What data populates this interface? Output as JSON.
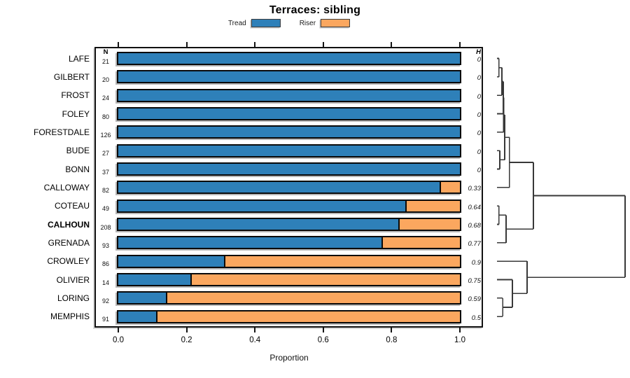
{
  "chart_data": {
    "type": "bar",
    "stacked": true,
    "orientation": "horizontal",
    "title": "Terraces: sibling",
    "xlabel": "Proportion",
    "xlim": [
      0,
      1
    ],
    "xtick_labels": [
      "0.0",
      "0.2",
      "0.4",
      "0.6",
      "0.8",
      "1.0"
    ],
    "grid": false,
    "legend_position": "top",
    "legend": {
      "entries": [
        {
          "label": "Tread",
          "color": "#2E80B9"
        },
        {
          "label": "Riser",
          "color": "#FBA75F"
        }
      ]
    },
    "n_column_header": "N",
    "h_column_header": "H",
    "rows": [
      {
        "label": "LAFE",
        "n": 21,
        "tread": 1.0,
        "riser": 0.0,
        "h": "0",
        "bold": false
      },
      {
        "label": "GILBERT",
        "n": 20,
        "tread": 1.0,
        "riser": 0.0,
        "h": "0",
        "bold": false
      },
      {
        "label": "FROST",
        "n": 24,
        "tread": 1.0,
        "riser": 0.0,
        "h": "0",
        "bold": false
      },
      {
        "label": "FOLEY",
        "n": 80,
        "tread": 1.0,
        "riser": 0.0,
        "h": "0",
        "bold": false
      },
      {
        "label": "FORESTDALE",
        "n": 126,
        "tread": 1.0,
        "riser": 0.0,
        "h": "0",
        "bold": false
      },
      {
        "label": "BUDE",
        "n": 27,
        "tread": 1.0,
        "riser": 0.0,
        "h": "0",
        "bold": false
      },
      {
        "label": "BONN",
        "n": 37,
        "tread": 1.0,
        "riser": 0.0,
        "h": "0",
        "bold": false
      },
      {
        "label": "CALLOWAY",
        "n": 82,
        "tread": 0.94,
        "riser": 0.06,
        "h": "0.33",
        "bold": false
      },
      {
        "label": "COTEAU",
        "n": 49,
        "tread": 0.84,
        "riser": 0.16,
        "h": "0.64",
        "bold": false
      },
      {
        "label": "CALHOUN",
        "n": 208,
        "tread": 0.82,
        "riser": 0.18,
        "h": "0.68",
        "bold": true
      },
      {
        "label": "GRENADA",
        "n": 93,
        "tread": 0.77,
        "riser": 0.23,
        "h": "0.77",
        "bold": false
      },
      {
        "label": "CROWLEY",
        "n": 86,
        "tread": 0.31,
        "riser": 0.69,
        "h": "0.9",
        "bold": false
      },
      {
        "label": "OLIVIER",
        "n": 14,
        "tread": 0.21,
        "riser": 0.79,
        "h": "0.75",
        "bold": false
      },
      {
        "label": "LORING",
        "n": 92,
        "tread": 0.14,
        "riser": 0.86,
        "h": "0.59",
        "bold": false
      },
      {
        "label": "MEMPHIS",
        "n": 91,
        "tread": 0.11,
        "riser": 0.89,
        "h": "0.5",
        "bold": false
      }
    ],
    "dendrogram": {
      "side": "right",
      "merges": [
        {
          "a": "LAFE",
          "b": "GILBERT",
          "h": 0.016
        },
        {
          "a": "#0",
          "b": "FROST",
          "h": 0.038
        },
        {
          "a": "#1",
          "b": "FOLEY",
          "h": 0.049
        },
        {
          "a": "#2",
          "b": "FORESTDALE",
          "h": 0.052
        },
        {
          "a": "BUDE",
          "b": "BONN",
          "h": 0.022
        },
        {
          "a": "#3",
          "b": "#4",
          "h": 0.06
        },
        {
          "a": "#5",
          "b": "CALLOWAY",
          "h": 0.098
        },
        {
          "a": "COTEAU",
          "b": "CALHOUN",
          "h": 0.016
        },
        {
          "a": "#7",
          "b": "GRENADA",
          "h": 0.071
        },
        {
          "a": "#6",
          "b": "#8",
          "h": 0.284
        },
        {
          "a": "LORING",
          "b": "MEMPHIS",
          "h": 0.044
        },
        {
          "a": "OLIVIER",
          "b": "#10",
          "h": 0.12
        },
        {
          "a": "CROWLEY",
          "b": "#11",
          "h": 0.235
        },
        {
          "a": "#9",
          "b": "#12",
          "h": 1.0
        }
      ]
    },
    "colors": {
      "bar_border": "#0a0a0a",
      "dendrogram_line": "#383838",
      "box_border": "#111111"
    }
  }
}
